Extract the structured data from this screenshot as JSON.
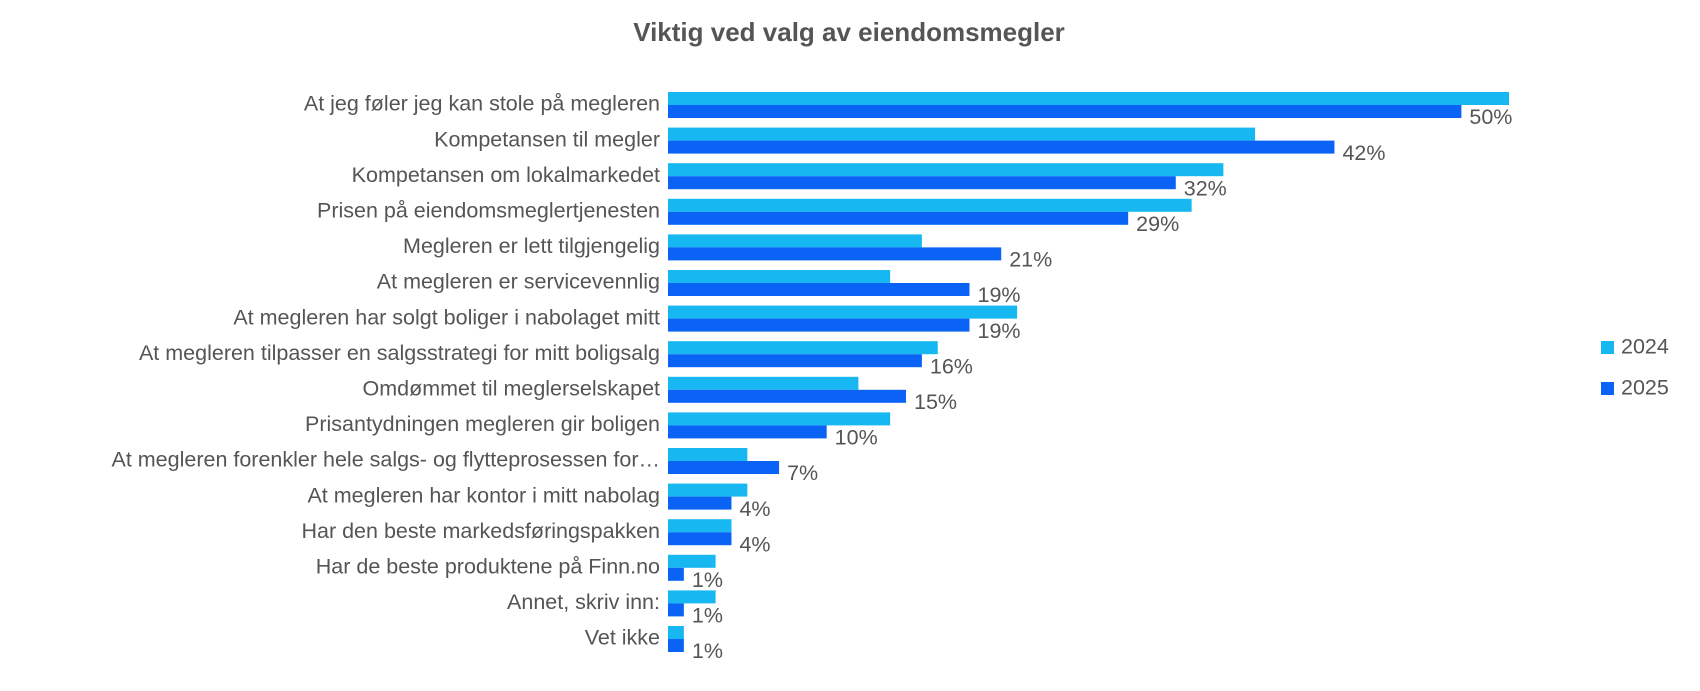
{
  "chart_data": {
    "type": "barh",
    "title": "Viktig ved valg av eiendomsmegler",
    "categories": [
      "At jeg føler jeg kan stole på megleren",
      "Kompetansen til megler",
      "Kompetansen om lokalmarkedet",
      "Prisen på eiendomsmeglertjenesten",
      "Megleren er lett tilgjengelig",
      "At megleren er servicevennlig",
      "At megleren har solgt boliger i nabolaget mitt",
      "At megleren tilpasser en salgsstrategi for mitt boligsalg",
      "Omdømmet til meglerselskapet",
      "Prisantydningen megleren gir boligen",
      "At megleren forenkler hele salgs- og flytteprosessen for…",
      "At megleren har kontor i mitt nabolag",
      "Har den beste markedsføringspakken",
      "Har de beste produktene på Finn.no",
      "Annet, skriv inn:",
      "Vet ikke"
    ],
    "series": [
      {
        "name": "2024",
        "color": "#17b8f1",
        "values": [
          53,
          37,
          35,
          33,
          16,
          14,
          22,
          17,
          12,
          14,
          5,
          5,
          4,
          3,
          3,
          1
        ]
      },
      {
        "name": "2025",
        "color": "#0a63f5",
        "values": [
          50,
          42,
          32,
          29,
          21,
          19,
          19,
          16,
          15,
          10,
          7,
          4,
          4,
          1,
          1,
          1
        ],
        "value_labels": [
          "50%",
          "42%",
          "32%",
          "29%",
          "21%",
          "19%",
          "19%",
          "16%",
          "15%",
          "10%",
          "7%",
          "4%",
          "4%",
          "1%",
          "1%",
          "1%"
        ]
      }
    ],
    "legend": "right"
  }
}
